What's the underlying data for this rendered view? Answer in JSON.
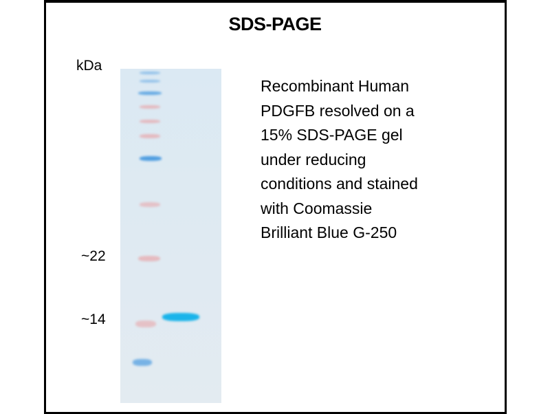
{
  "title": "SDS-PAGE",
  "axis_unit": "kDa",
  "markers": [
    {
      "label": "~22"
    },
    {
      "label": "~14"
    }
  ],
  "description_lines": [
    "Recombinant Human",
    "PDGFB resolved on a",
    "15% SDS-PAGE gel",
    "under reducing",
    "conditions and stained",
    "with Coomassie",
    "Brilliant Blue G-250"
  ],
  "colors": {
    "ladder_blue": "#4a9be0",
    "ladder_red": "#e8a6aa",
    "sample_band": "#1ab4ea",
    "gel_background": "#dde9f2"
  }
}
